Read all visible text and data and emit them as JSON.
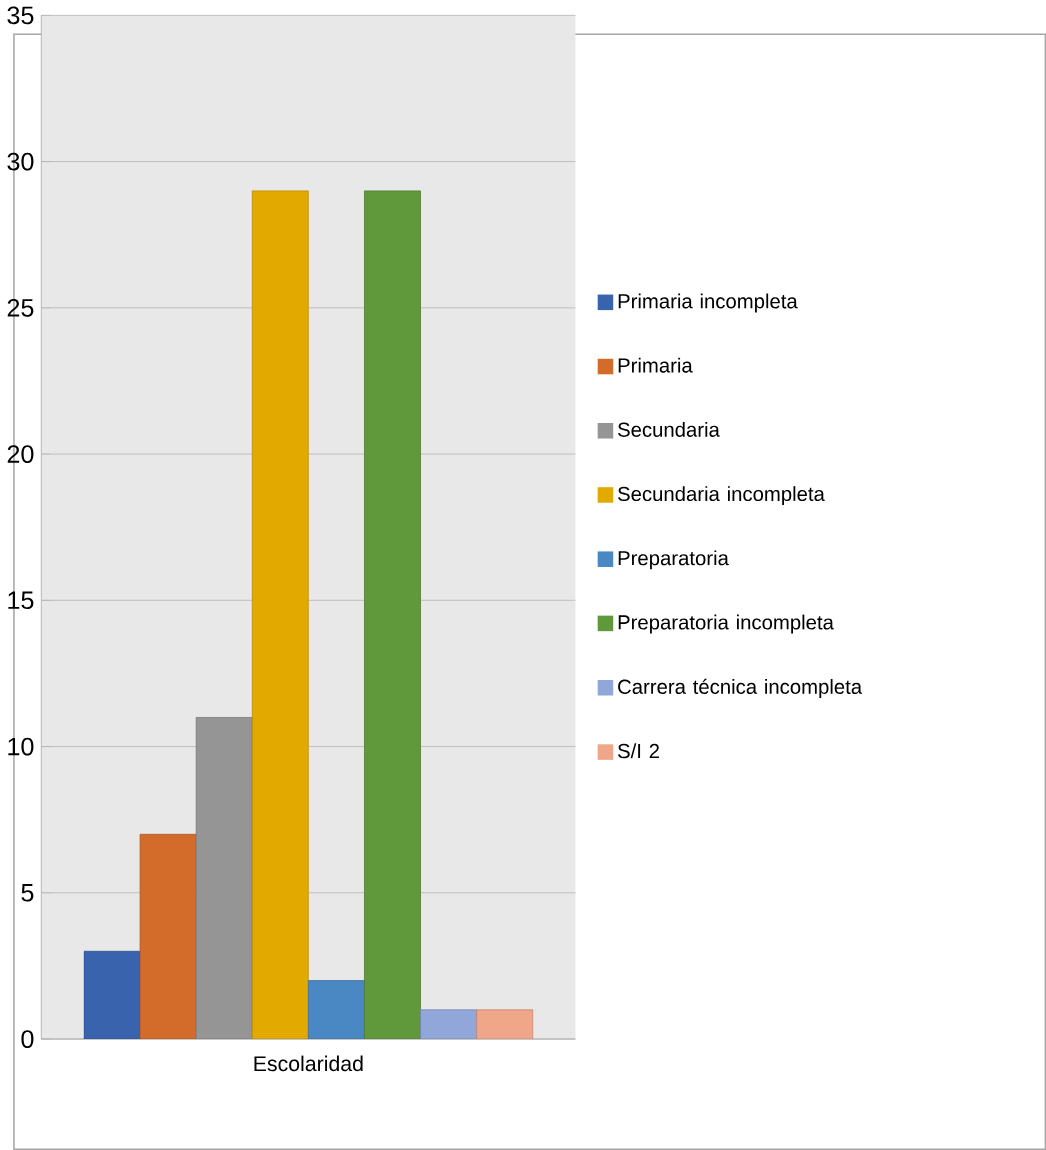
{
  "chart_data": {
    "type": "bar",
    "categories": [
      "Escolaridad"
    ],
    "series": [
      {
        "name": "Primaria incompleta",
        "color": "#3a63ad",
        "values": [
          3
        ]
      },
      {
        "name": "Primaria",
        "color": "#d36b2b",
        "values": [
          7
        ]
      },
      {
        "name": "Secundaria",
        "color": "#959595",
        "values": [
          11
        ]
      },
      {
        "name": "Secundaria incompleta",
        "color": "#e2aa00",
        "values": [
          29
        ]
      },
      {
        "name": "Preparatoria",
        "color": "#4a88c3",
        "values": [
          2
        ]
      },
      {
        "name": "Preparatoria incompleta",
        "color": "#5f993c",
        "values": [
          29
        ]
      },
      {
        "name": "Carrera técnica incompleta",
        "color": "#91a6d9",
        "values": [
          1
        ]
      },
      {
        "name": "S/I 2",
        "color": "#f0a688",
        "values": [
          1
        ]
      }
    ],
    "ylim": [
      0,
      35
    ],
    "yticks": [
      0,
      5,
      10,
      15,
      20,
      25,
      30,
      35
    ],
    "grid": "y",
    "legend": "right"
  }
}
